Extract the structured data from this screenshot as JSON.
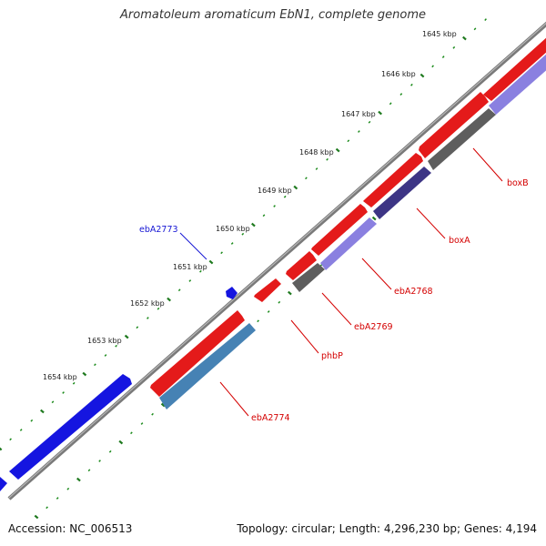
{
  "title": "Aromatoleum aromaticum EbN1, complete genome",
  "footer": {
    "accession": "Accession: NC_006513",
    "summary": "Topology: circular; Length: 4,296,230 bp; Genes: 4,194"
  },
  "colors": {
    "backbone": "#808080",
    "tick": "#1a8a1a",
    "red_gene": "#e41a1a",
    "blue_gene": "#1515e0",
    "light_purple": "#8a80e0",
    "dark_purple": "#3d3585",
    "gray": "#666666",
    "steel_blue": "#4682b4",
    "label_red": "#d40000",
    "label_blue": "#1515d4"
  },
  "scale_labels": [
    "1645 kbp",
    "1646 kbp",
    "1647 kbp",
    "1648 kbp",
    "1649 kbp",
    "1650 kbp",
    "1651 kbp",
    "1652 kbp",
    "1653 kbp",
    "1654 kbp"
  ],
  "gene_labels": [
    {
      "name": "boxB",
      "color": "red"
    },
    {
      "name": "boxA",
      "color": "red"
    },
    {
      "name": "ebA2768",
      "color": "red"
    },
    {
      "name": "ebA2769",
      "color": "red"
    },
    {
      "name": "phbP",
      "color": "red"
    },
    {
      "name": "ebA2774",
      "color": "red"
    },
    {
      "name": "ebA2773",
      "color": "blue"
    }
  ]
}
